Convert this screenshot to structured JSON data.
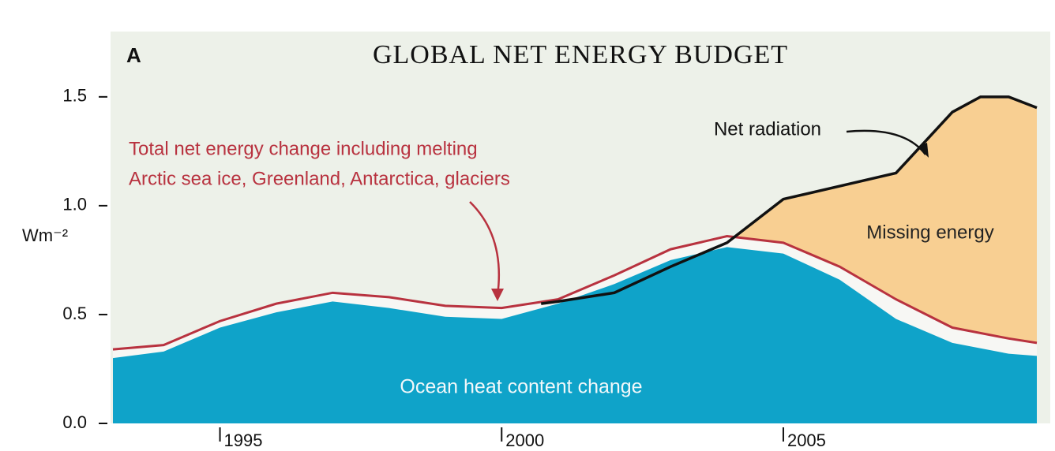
{
  "chart_data": {
    "type": "area",
    "panel_label": "A",
    "title": "GLOBAL NET ENERGY BUDGET",
    "y_label": "Wm⁻²",
    "xlim": [
      1993.1,
      2009.5
    ],
    "xticks": [
      1995,
      2000,
      2005
    ],
    "ylim": [
      0,
      1.8
    ],
    "yticks": [
      {
        "value": 0,
        "label": "0.0"
      },
      0.5,
      {
        "value": 1,
        "label": "1.0"
      },
      1.5
    ],
    "background": "#edf1e9",
    "annotations": [
      "Missing energy"
    ],
    "series": [
      {
        "name": "Net radiation",
        "color": "#111111",
        "fill": "#f8cf92",
        "x": [
          2000.7,
          2001,
          2002,
          2003,
          2004,
          2005,
          2006,
          2007,
          2008,
          2008.5,
          2009,
          2009.5
        ],
        "values": [
          0.55,
          0.56,
          0.6,
          0.72,
          0.83,
          1.03,
          1.09,
          1.15,
          1.43,
          1.5,
          1.5,
          1.45
        ]
      },
      {
        "name": [
          "Total net energy change including melting",
          "Arctic sea ice, Greenland, Antarctica, glaciers"
        ],
        "color": "#b8323f",
        "fill": "#f7f7f4",
        "x": [
          1993.1,
          1994,
          1995,
          1996,
          1997,
          1998,
          1999,
          2000,
          2001,
          2002,
          2003,
          2004,
          2005,
          2006,
          2007,
          2008,
          2009,
          2009.5
        ],
        "values": [
          0.34,
          0.36,
          0.47,
          0.55,
          0.6,
          0.58,
          0.54,
          0.53,
          0.57,
          0.68,
          0.8,
          0.86,
          0.83,
          0.72,
          0.57,
          0.44,
          0.39,
          0.37
        ]
      },
      {
        "name": "Ocean heat content change",
        "color": "#0fa3c9",
        "fill": "#0fa3c9",
        "x": [
          1993.1,
          1994,
          1995,
          1996,
          1997,
          1998,
          1999,
          2000,
          2001,
          2002,
          2003,
          2004,
          2005,
          2006,
          2007,
          2008,
          2009,
          2009.5
        ],
        "values": [
          0.3,
          0.33,
          0.44,
          0.51,
          0.56,
          0.53,
          0.49,
          0.48,
          0.55,
          0.64,
          0.75,
          0.81,
          0.78,
          0.66,
          0.48,
          0.37,
          0.32,
          0.31
        ]
      }
    ]
  }
}
